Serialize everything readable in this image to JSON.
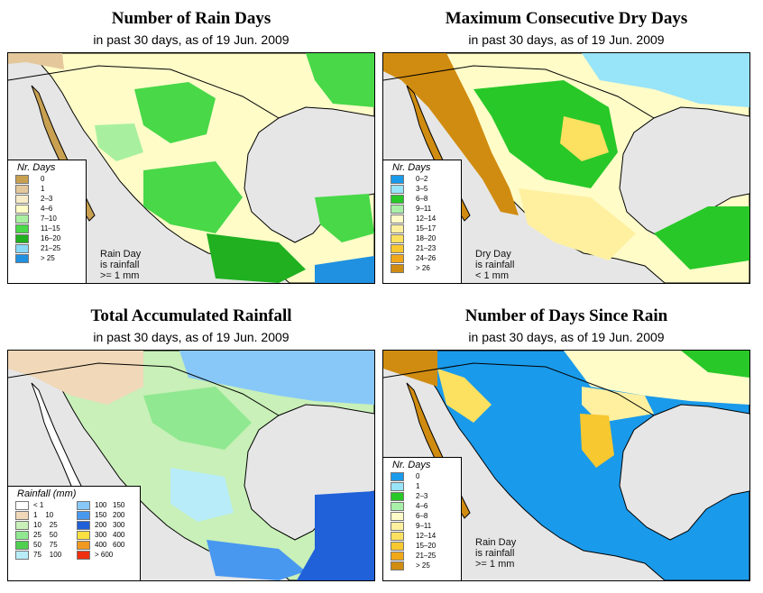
{
  "date": "19 Jun. 2009",
  "colors": {
    "ocean": "#e6e6e6",
    "border": "#000000"
  },
  "panels": [
    {
      "id": "rain-days",
      "title": "Number of Rain Days",
      "subtitle": "in past 30 days, as of  19 Jun. 2009",
      "legend_title": "Nr. Days",
      "legend": [
        {
          "label": "0",
          "color": "#c8a050"
        },
        {
          "label": "1",
          "color": "#e4c89c"
        },
        {
          "label": "2–3",
          "color": "#f8ecc8"
        },
        {
          "label": "4–6",
          "color": "#fffcc8"
        },
        {
          "label": "7–10",
          "color": "#a8f0a0"
        },
        {
          "label": "11–15",
          "color": "#48d848"
        },
        {
          "label": "16–20",
          "color": "#20b020"
        },
        {
          "label": "21–25",
          "color": "#88d8f8"
        },
        {
          "label": "> 25",
          "color": "#2090e0"
        }
      ],
      "note": [
        "Rain Day",
        "is rainfall",
        ">= 1 mm"
      ]
    },
    {
      "id": "max-dry-days",
      "title": "Maximum Consecutive Dry Days",
      "subtitle": "in past 30 days, as of  19 Jun. 2009",
      "legend_title": "Nr. Days",
      "legend": [
        {
          "label": "0–2",
          "color": "#1a9aea"
        },
        {
          "label": "3–5",
          "color": "#98e4f8"
        },
        {
          "label": "6–8",
          "color": "#28c828"
        },
        {
          "label": "9–11",
          "color": "#a8f0a8"
        },
        {
          "label": "12–14",
          "color": "#fffcc8"
        },
        {
          "label": "15–17",
          "color": "#fff0a0"
        },
        {
          "label": "18–20",
          "color": "#fce060"
        },
        {
          "label": "21–23",
          "color": "#f8c830"
        },
        {
          "label": "24–26",
          "color": "#f0a818"
        },
        {
          "label": "> 26",
          "color": "#d08c10"
        }
      ],
      "note": [
        "Dry Day",
        "is rainfall",
        "< 1 mm"
      ]
    },
    {
      "id": "total-rainfall",
      "title": "Total Accumulated Rainfall",
      "subtitle": "in past 30 days, as of  19 Jun. 2009",
      "legend_title": "Rainfall (mm)",
      "legend_left": [
        {
          "label": "< 1",
          "color": "#ffffff"
        },
        {
          "label": "1    10",
          "color": "#f0d8b8"
        },
        {
          "label": "10    25",
          "color": "#c8f0b8"
        },
        {
          "label": "25    50",
          "color": "#90e890"
        },
        {
          "label": "50    75",
          "color": "#50d050"
        },
        {
          "label": "75    100",
          "color": "#b8ecf8"
        }
      ],
      "legend_right": [
        {
          "label": "100   150",
          "color": "#88c8f8"
        },
        {
          "label": "150   200",
          "color": "#4898f0"
        },
        {
          "label": "200   300",
          "color": "#2060d8"
        },
        {
          "label": "300   400",
          "color": "#f8e040"
        },
        {
          "label": "400   600",
          "color": "#f09820"
        },
        {
          "label": "> 600",
          "color": "#f03010"
        }
      ]
    },
    {
      "id": "days-since-rain",
      "title": "Number of Days Since Rain",
      "subtitle": "in past 30 days, as of  19 Jun. 2009",
      "legend_title": "Nr. Days",
      "legend": [
        {
          "label": "0",
          "color": "#1a9aea"
        },
        {
          "label": "1",
          "color": "#98e4f8"
        },
        {
          "label": "2–3",
          "color": "#28c828"
        },
        {
          "label": "4–6",
          "color": "#a8f0a8"
        },
        {
          "label": "6–8",
          "color": "#fffcc8"
        },
        {
          "label": "9–11",
          "color": "#fff0a0"
        },
        {
          "label": "12–14",
          "color": "#fce060"
        },
        {
          "label": "15–20",
          "color": "#f8c830"
        },
        {
          "label": "21–25",
          "color": "#f0a818"
        },
        {
          "label": "> 25",
          "color": "#d08c10"
        }
      ],
      "note": [
        "Rain Day",
        "is rainfall",
        ">= 1 mm"
      ]
    }
  ]
}
